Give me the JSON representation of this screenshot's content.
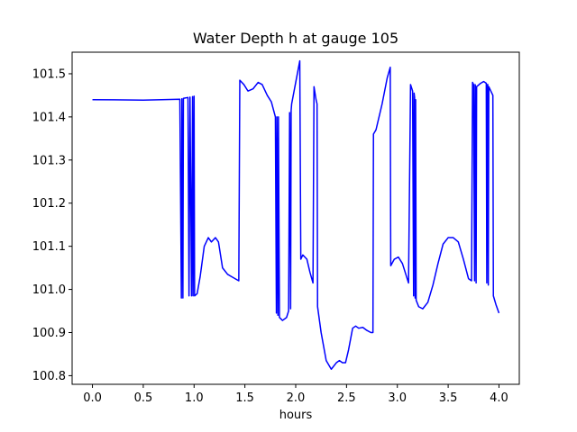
{
  "chart_data": {
    "type": "line",
    "title": "Water Depth h at gauge 105",
    "xlabel": "hours",
    "ylabel": "",
    "xlim": [
      -0.2,
      4.2
    ],
    "ylim": [
      100.78,
      101.55
    ],
    "grid": false,
    "x_ticks": [
      0.0,
      0.5,
      1.0,
      1.5,
      2.0,
      2.5,
      3.0,
      3.5,
      4.0
    ],
    "x_tick_labels": [
      "0.0",
      "0.5",
      "1.0",
      "1.5",
      "2.0",
      "2.5",
      "3.0",
      "3.5",
      "4.0"
    ],
    "y_ticks": [
      100.8,
      100.9,
      101.0,
      101.1,
      101.2,
      101.3,
      101.4,
      101.5
    ],
    "y_tick_labels": [
      "100.8",
      "100.9",
      "101.0",
      "101.1",
      "101.2",
      "101.3",
      "101.4",
      "101.5"
    ],
    "series": [
      {
        "color": "#0000ff",
        "points": [
          [
            0.0,
            101.44
          ],
          [
            0.5,
            101.439
          ],
          [
            0.86,
            101.441
          ],
          [
            0.875,
            100.98
          ],
          [
            0.88,
            101.442
          ],
          [
            0.89,
            100.98
          ],
          [
            0.895,
            101.443
          ],
          [
            0.94,
            101.445
          ],
          [
            0.95,
            100.985
          ],
          [
            0.96,
            101.446
          ],
          [
            0.975,
            100.985
          ],
          [
            0.985,
            101.447
          ],
          [
            0.99,
            100.985
          ],
          [
            1.0,
            101.448
          ],
          [
            1.005,
            100.985
          ],
          [
            1.03,
            100.99
          ],
          [
            1.06,
            101.03
          ],
          [
            1.1,
            101.1
          ],
          [
            1.14,
            101.12
          ],
          [
            1.17,
            101.11
          ],
          [
            1.21,
            101.12
          ],
          [
            1.24,
            101.11
          ],
          [
            1.28,
            101.05
          ],
          [
            1.33,
            101.035
          ],
          [
            1.38,
            101.028
          ],
          [
            1.44,
            101.02
          ],
          [
            1.45,
            101.485
          ],
          [
            1.49,
            101.475
          ],
          [
            1.53,
            101.46
          ],
          [
            1.58,
            101.465
          ],
          [
            1.63,
            101.48
          ],
          [
            1.67,
            101.475
          ],
          [
            1.72,
            101.45
          ],
          [
            1.76,
            101.435
          ],
          [
            1.8,
            101.4
          ],
          [
            1.81,
            100.945
          ],
          [
            1.815,
            101.4
          ],
          [
            1.825,
            100.94
          ],
          [
            1.83,
            101.4
          ],
          [
            1.84,
            100.935
          ],
          [
            1.87,
            100.928
          ],
          [
            1.91,
            100.935
          ],
          [
            1.93,
            100.95
          ],
          [
            1.94,
            101.41
          ],
          [
            1.95,
            100.955
          ],
          [
            1.955,
            101.415
          ],
          [
            1.96,
            101.43
          ],
          [
            2.0,
            101.48
          ],
          [
            2.04,
            101.53
          ],
          [
            2.05,
            101.07
          ],
          [
            2.07,
            101.08
          ],
          [
            2.11,
            101.07
          ],
          [
            2.14,
            101.04
          ],
          [
            2.17,
            101.015
          ],
          [
            2.18,
            101.47
          ],
          [
            2.2,
            101.44
          ],
          [
            2.21,
            101.43
          ],
          [
            2.215,
            100.96
          ],
          [
            2.25,
            100.9
          ],
          [
            2.3,
            100.835
          ],
          [
            2.35,
            100.815
          ],
          [
            2.4,
            100.83
          ],
          [
            2.43,
            100.835
          ],
          [
            2.46,
            100.83
          ],
          [
            2.49,
            100.83
          ],
          [
            2.52,
            100.86
          ],
          [
            2.56,
            100.91
          ],
          [
            2.59,
            100.915
          ],
          [
            2.62,
            100.91
          ],
          [
            2.66,
            100.912
          ],
          [
            2.7,
            100.905
          ],
          [
            2.74,
            100.9
          ],
          [
            2.76,
            100.9
          ],
          [
            2.765,
            101.36
          ],
          [
            2.79,
            101.37
          ],
          [
            2.85,
            101.43
          ],
          [
            2.9,
            101.49
          ],
          [
            2.93,
            101.515
          ],
          [
            2.935,
            101.055
          ],
          [
            2.97,
            101.07
          ],
          [
            3.01,
            101.075
          ],
          [
            3.05,
            101.06
          ],
          [
            3.09,
            101.03
          ],
          [
            3.11,
            101.015
          ],
          [
            3.13,
            101.475
          ],
          [
            3.15,
            101.46
          ],
          [
            3.16,
            100.985
          ],
          [
            3.165,
            101.455
          ],
          [
            3.17,
            101.445
          ],
          [
            3.175,
            100.98
          ],
          [
            3.18,
            101.44
          ],
          [
            3.185,
            100.975
          ],
          [
            3.21,
            100.96
          ],
          [
            3.25,
            100.955
          ],
          [
            3.3,
            100.97
          ],
          [
            3.35,
            101.01
          ],
          [
            3.4,
            101.06
          ],
          [
            3.45,
            101.105
          ],
          [
            3.5,
            101.12
          ],
          [
            3.55,
            101.12
          ],
          [
            3.6,
            101.11
          ],
          [
            3.65,
            101.07
          ],
          [
            3.7,
            101.025
          ],
          [
            3.73,
            101.02
          ],
          [
            3.74,
            101.48
          ],
          [
            3.75,
            101.475
          ],
          [
            3.76,
            101.02
          ],
          [
            3.765,
            101.475
          ],
          [
            3.77,
            101.47
          ],
          [
            3.775,
            101.015
          ],
          [
            3.78,
            101.47
          ],
          [
            3.82,
            101.478
          ],
          [
            3.85,
            101.482
          ],
          [
            3.875,
            101.478
          ],
          [
            3.88,
            101.015
          ],
          [
            3.885,
            101.475
          ],
          [
            3.89,
            101.475
          ],
          [
            3.895,
            101.01
          ],
          [
            3.9,
            101.47
          ],
          [
            3.93,
            101.455
          ],
          [
            3.94,
            101.45
          ],
          [
            3.945,
            100.985
          ],
          [
            3.97,
            100.965
          ],
          [
            4.0,
            100.945
          ]
        ]
      }
    ]
  }
}
